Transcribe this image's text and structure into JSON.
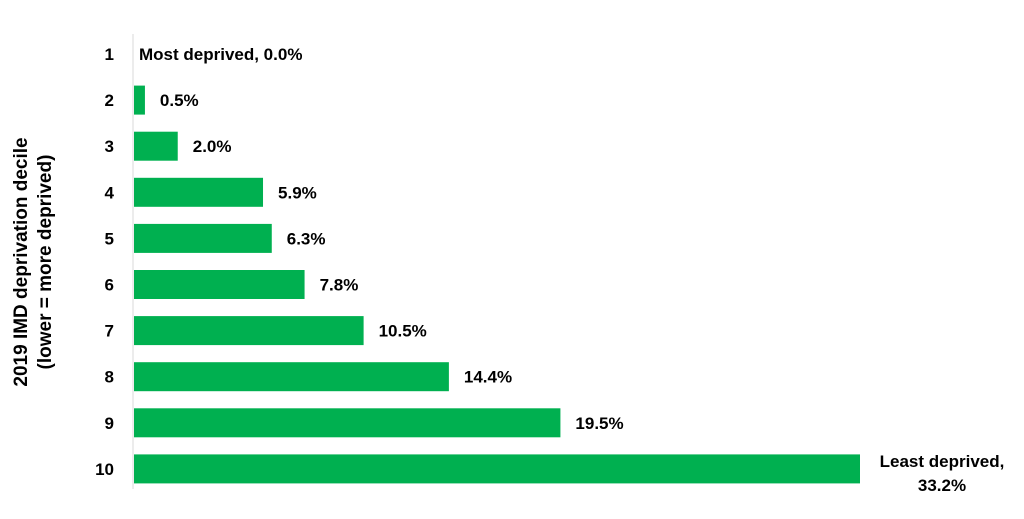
{
  "chart_data": {
    "type": "bar",
    "orientation": "horizontal",
    "ylabel_lines": [
      "2019 IMD deprivation decile",
      "(lower = more deprived)"
    ],
    "xlabel": "",
    "categories": [
      "1",
      "2",
      "3",
      "4",
      "5",
      "6",
      "7",
      "8",
      "9",
      "10"
    ],
    "values": [
      0.0,
      0.5,
      2.0,
      5.9,
      6.3,
      7.8,
      10.5,
      14.4,
      19.5,
      33.2
    ],
    "data_labels": [
      [
        "Most deprived, 0.0%"
      ],
      [
        "0.5%"
      ],
      [
        "2.0%"
      ],
      [
        "5.9%"
      ],
      [
        "6.3%"
      ],
      [
        "7.8%"
      ],
      [
        "10.5%"
      ],
      [
        "14.4%"
      ],
      [
        "19.5%"
      ],
      [
        "Least deprived,",
        "33.2%"
      ]
    ],
    "xlim": [
      0,
      33.2
    ],
    "grid": false,
    "legend": "none",
    "bar_color": "#00b050",
    "axis_color": "#d9d9d9"
  }
}
